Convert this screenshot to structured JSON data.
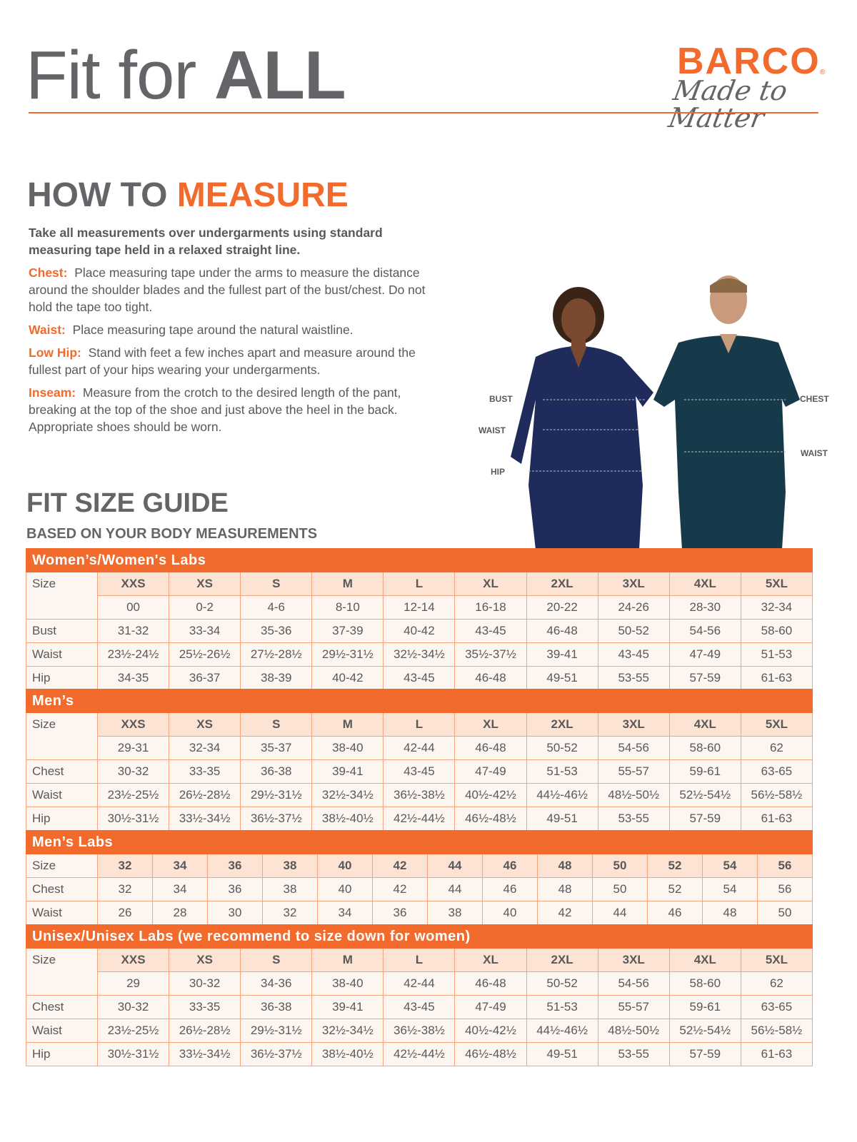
{
  "header": {
    "title_light": "Fit for ",
    "title_bold": "ALL",
    "brand": "BARCO",
    "brand_mark": "®",
    "tagline": "Made to Matter"
  },
  "colors": {
    "accent": "#f26a2c",
    "text": "#58595b",
    "size_row": "#fde3d3",
    "cell": "#fdf5f0"
  },
  "how_to": {
    "title_a": "HOW TO ",
    "title_b": "MEASURE",
    "intro": "Take all measurements over undergarments using standard measuring tape held in a relaxed straight line.",
    "items": [
      {
        "label": "Chest:",
        "text": "Place measuring tape under the arms to measure the distance around the shoulder blades and the fullest part of the bust/chest. Do not hold the tape too tight."
      },
      {
        "label": "Waist:",
        "text": "Place measuring tape around the natural waistline."
      },
      {
        "label": "Low Hip:",
        "text": "Stand with feet a few inches apart and measure around the fullest part of your hips wearing your undergarments."
      },
      {
        "label": "Inseam:",
        "text": "Measure from the crotch to the desired length of the pant, breaking at the top of the shoe and just above the heel in the back. Appropriate shoes should be worn."
      }
    ]
  },
  "figure": {
    "labels": [
      "BUST",
      "WAIST",
      "HIP",
      "CHEST",
      "WAIST"
    ]
  },
  "guide": {
    "title": "FIT SIZE GUIDE",
    "subtitle": "BASED ON YOUR BODY MEASUREMENTS"
  },
  "tables": [
    {
      "title": "Women’s/Women's Labs",
      "rows": [
        {
          "label": "Size",
          "size": true,
          "values": [
            "XXS",
            "XS",
            "S",
            "M",
            "L",
            "XL",
            "2XL",
            "3XL",
            "4XL",
            "5XL"
          ]
        },
        {
          "label": "",
          "values": [
            "00",
            "0-2",
            "4-6",
            "8-10",
            "12-14",
            "16-18",
            "20-22",
            "24-26",
            "28-30",
            "32-34"
          ]
        },
        {
          "label": "Bust",
          "values": [
            "31-32",
            "33-34",
            "35-36",
            "37-39",
            "40-42",
            "43-45",
            "46-48",
            "50-52",
            "54-56",
            "58-60"
          ]
        },
        {
          "label": "Waist",
          "values": [
            "23½-24½",
            "25½-26½",
            "27½-28½",
            "29½-31½",
            "32½-34½",
            "35½-37½",
            "39-41",
            "43-45",
            "47-49",
            "51-53"
          ]
        },
        {
          "label": "Hip",
          "values": [
            "34-35",
            "36-37",
            "38-39",
            "40-42",
            "43-45",
            "46-48",
            "49-51",
            "53-55",
            "57-59",
            "61-63"
          ]
        }
      ]
    },
    {
      "title": "Men’s",
      "rows": [
        {
          "label": "Size",
          "size": true,
          "values": [
            "XXS",
            "XS",
            "S",
            "M",
            "L",
            "XL",
            "2XL",
            "3XL",
            "4XL",
            "5XL"
          ]
        },
        {
          "label": "",
          "values": [
            "29-31",
            "32-34",
            "35-37",
            "38-40",
            "42-44",
            "46-48",
            "50-52",
            "54-56",
            "58-60",
            "62"
          ]
        },
        {
          "label": "Chest",
          "values": [
            "30-32",
            "33-35",
            "36-38",
            "39-41",
            "43-45",
            "47-49",
            "51-53",
            "55-57",
            "59-61",
            "63-65"
          ]
        },
        {
          "label": "Waist",
          "values": [
            "23½-25½",
            "26½-28½",
            "29½-31½",
            "32½-34½",
            "36½-38½",
            "40½-42½",
            "44½-46½",
            "48½-50½",
            "52½-54½",
            "56½-58½"
          ]
        },
        {
          "label": "Hip",
          "values": [
            "30½-31½",
            "33½-34½",
            "36½-37½",
            "38½-40½",
            "42½-44½",
            "46½-48½",
            "49-51",
            "53-55",
            "57-59",
            "61-63"
          ]
        }
      ]
    },
    {
      "title": "Men’s Labs",
      "rows": [
        {
          "label": "Size",
          "size": true,
          "values": [
            "32",
            "34",
            "36",
            "38",
            "40",
            "42",
            "44",
            "46",
            "48",
            "50",
            "52",
            "54",
            "56"
          ]
        },
        {
          "label": "Chest",
          "values": [
            "32",
            "34",
            "36",
            "38",
            "40",
            "42",
            "44",
            "46",
            "48",
            "50",
            "52",
            "54",
            "56"
          ]
        },
        {
          "label": "Waist",
          "values": [
            "26",
            "28",
            "30",
            "32",
            "34",
            "36",
            "38",
            "40",
            "42",
            "44",
            "46",
            "48",
            "50"
          ]
        }
      ]
    },
    {
      "title": "Unisex/Unisex Labs (we recommend to size down for women)",
      "rows": [
        {
          "label": "Size",
          "size": true,
          "values": [
            "XXS",
            "XS",
            "S",
            "M",
            "L",
            "XL",
            "2XL",
            "3XL",
            "4XL",
            "5XL"
          ]
        },
        {
          "label": "",
          "values": [
            "29",
            "30-32",
            "34-36",
            "38-40",
            "42-44",
            "46-48",
            "50-52",
            "54-56",
            "58-60",
            "62"
          ]
        },
        {
          "label": "Chest",
          "values": [
            "30-32",
            "33-35",
            "36-38",
            "39-41",
            "43-45",
            "47-49",
            "51-53",
            "55-57",
            "59-61",
            "63-65"
          ]
        },
        {
          "label": "Waist",
          "values": [
            "23½-25½",
            "26½-28½",
            "29½-31½",
            "32½-34½",
            "36½-38½",
            "40½-42½",
            "44½-46½",
            "48½-50½",
            "52½-54½",
            "56½-58½"
          ]
        },
        {
          "label": "Hip",
          "values": [
            "30½-31½",
            "33½-34½",
            "36½-37½",
            "38½-40½",
            "42½-44½",
            "46½-48½",
            "49-51",
            "53-55",
            "57-59",
            "61-63"
          ]
        }
      ]
    }
  ]
}
